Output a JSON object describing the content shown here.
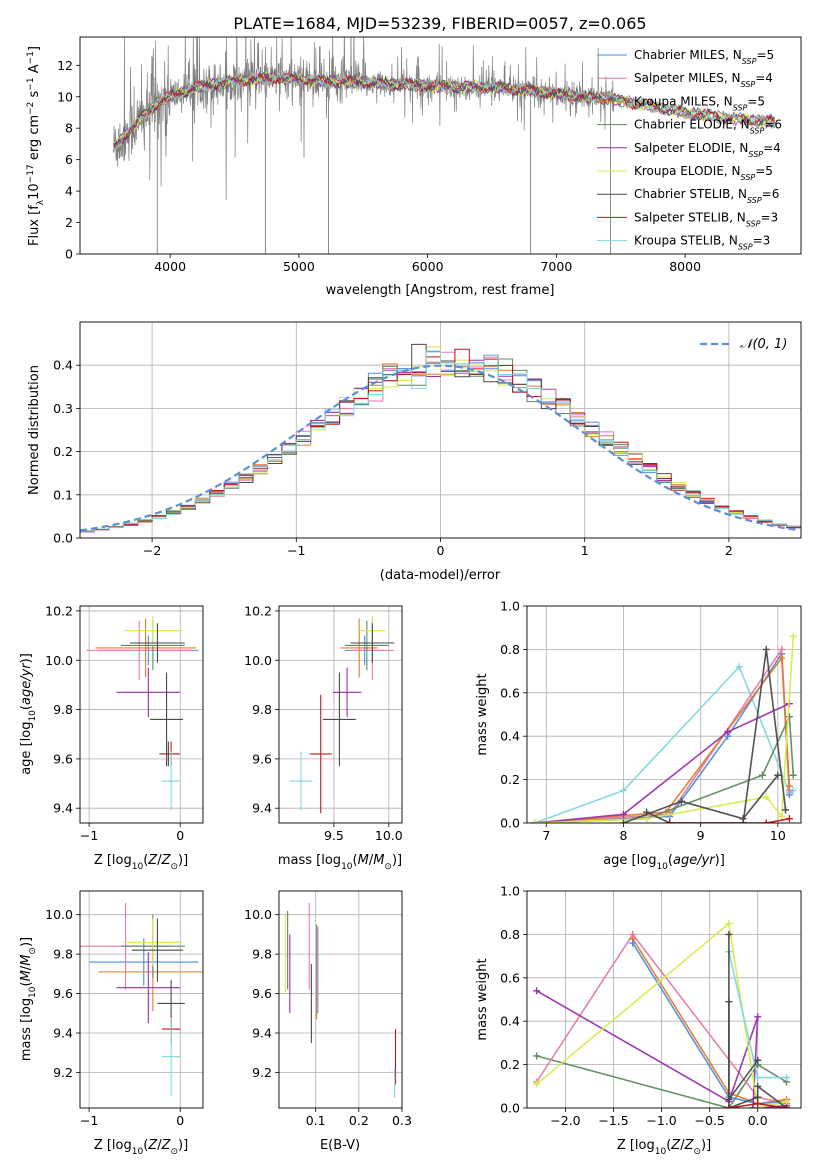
{
  "title": "PLATE=1684, MJD=53239, FIBERID=0057, z=0.065",
  "colors": {
    "chabrier_miles": "#4c8fd9",
    "salpeter_miles": "#e37aa8",
    "kroupa_miles": "#e07b2c",
    "chabrier_elodie": "#5e8a5e",
    "salpeter_elodie": "#9b2fae",
    "kroupa_elodie": "#d5ec4c",
    "chabrier_stelib": "#4a4a4a",
    "salpeter_stelib": "#c0161d",
    "kroupa_stelib": "#7fd7dc",
    "data": "#7f7f7f",
    "gauss": "#5b8fd6",
    "grid": "#b0b0b0"
  },
  "chart_data": [
    {
      "id": "spectrum",
      "type": "line",
      "xlabel": "wavelength [Angstrom, rest frame]",
      "ylabel": "Flux [fλ10⁻¹⁷ erg cm⁻² s⁻¹ A⁻¹]",
      "xlim": [
        3300,
        8900
      ],
      "ylim": [
        0,
        13.8
      ],
      "xticks": [
        4000,
        5000,
        6000,
        7000,
        8000
      ],
      "yticks": [
        0,
        2,
        4,
        6,
        8,
        10,
        12
      ],
      "grid": false,
      "legend_position": "top-right",
      "legend": [
        {
          "label": "Chabrier MILES, N",
          "sub": "SSP",
          "suffix": "=5",
          "color_key": "chabrier_miles"
        },
        {
          "label": "Salpeter MILES, N",
          "sub": "SSP",
          "suffix": "=4",
          "color_key": "salpeter_miles"
        },
        {
          "label": "Kroupa MILES, N",
          "sub": "SSP",
          "suffix": "=5",
          "color_key": "kroupa_miles"
        },
        {
          "label": "Chabrier ELODIE, N",
          "sub": "SSP",
          "suffix": "=6",
          "color_key": "chabrier_elodie"
        },
        {
          "label": "Salpeter ELODIE, N",
          "sub": "SSP",
          "suffix": "=4",
          "color_key": "salpeter_elodie"
        },
        {
          "label": "Kroupa ELODIE, N",
          "sub": "SSP",
          "suffix": "=5",
          "color_key": "kroupa_elodie"
        },
        {
          "label": "Chabrier STELIB, N",
          "sub": "SSP",
          "suffix": "=6",
          "color_key": "chabrier_stelib"
        },
        {
          "label": "Salpeter STELIB, N",
          "sub": "SSP",
          "suffix": "=3",
          "color_key": "salpeter_stelib"
        },
        {
          "label": "Kroupa STELIB, N",
          "sub": "SSP",
          "suffix": "=3",
          "color_key": "kroupa_stelib"
        }
      ],
      "continuum": {
        "x": [
          3560,
          3700,
          3900,
          4000,
          4200,
          4500,
          4800,
          5000,
          5200,
          5500,
          5800,
          6000,
          6300,
          6500,
          6800,
          7000,
          7200,
          7400,
          7600,
          7800,
          8000,
          8200,
          8400,
          8700
        ],
        "y": [
          6.8,
          8.0,
          9.6,
          10.0,
          10.6,
          11.0,
          11.2,
          11.1,
          11.0,
          10.9,
          10.8,
          10.7,
          10.6,
          10.6,
          10.4,
          10.2,
          10.0,
          9.9,
          9.6,
          9.3,
          9.0,
          8.8,
          8.6,
          8.4
        ]
      },
      "data_range": [
        3560,
        7450
      ],
      "model_range": [
        3560,
        8700
      ]
    },
    {
      "id": "residuals",
      "type": "step",
      "xlabel": "(data-model)/error",
      "ylabel": "Normed distribution",
      "xlim": [
        -2.5,
        2.5
      ],
      "ylim": [
        0,
        0.5
      ],
      "xticks": [
        -2,
        -1,
        0,
        1,
        2
      ],
      "yticks": [
        0.0,
        0.1,
        0.2,
        0.3,
        0.4
      ],
      "grid": true,
      "legend_position": "top-right",
      "legend_label": "𝒩(0, 1)",
      "bin_width": 0.1,
      "gaussian": {
        "mean": 0,
        "sigma": 1
      }
    },
    {
      "id": "age_vs_Z",
      "type": "errorbar",
      "xlabel": "Z [log10(Z/Z⊙)]",
      "ylabel": "age [log10(age/yr)]",
      "xlim": [
        -1.1,
        0.25
      ],
      "ylim": [
        9.34,
        10.22
      ],
      "xticks": [
        -1,
        0
      ],
      "yticks": [
        9.4,
        9.6,
        9.8,
        10.0,
        10.2
      ],
      "grid": true,
      "points": [
        {
          "s": "chabrier_miles",
          "x": -0.35,
          "xe": 0.55,
          "y": 10.04,
          "ye": 0.06
        },
        {
          "s": "salpeter_miles",
          "x": -0.45,
          "xe": 0.58,
          "y": 10.04,
          "ye": 0.12
        },
        {
          "s": "kroupa_miles",
          "x": -0.38,
          "xe": 0.55,
          "y": 10.05,
          "ye": 0.12
        },
        {
          "s": "chabrier_elodie",
          "x": -0.3,
          "xe": 0.35,
          "y": 10.06,
          "ye": 0.1
        },
        {
          "s": "salpeter_elodie",
          "x": -0.35,
          "xe": 0.35,
          "y": 9.87,
          "ye": 0.1
        },
        {
          "s": "kroupa_elodie",
          "x": -0.3,
          "xe": 0.32,
          "y": 10.12,
          "ye": 0.06
        },
        {
          "s": "chabrier_stelib",
          "x": -0.25,
          "xe": 0.3,
          "y": 10.07,
          "ye": 0.08
        },
        {
          "s": "chabrier_stelib",
          "x": -0.15,
          "xe": 0.18,
          "y": 9.76,
          "ye": 0.19
        },
        {
          "s": "chabrier_stelib",
          "x": -0.13,
          "xe": 0.1,
          "y": 9.62,
          "ye": 0.05
        },
        {
          "s": "salpeter_stelib",
          "x": -0.1,
          "xe": 0.1,
          "y": 9.62,
          "ye": 0.05
        },
        {
          "s": "kroupa_stelib",
          "x": -0.1,
          "xe": 0.1,
          "y": 9.51,
          "ye": 0.12
        }
      ]
    },
    {
      "id": "age_vs_mass",
      "type": "errorbar",
      "xlabel": "mass [log10(M/M⊙)]",
      "ylabel": "",
      "xlim": [
        9.0,
        10.12
      ],
      "ylim": [
        9.34,
        10.22
      ],
      "xticks": [
        9.5,
        10.0
      ],
      "yticks": [
        9.4,
        9.6,
        9.8,
        10.0,
        10.2
      ],
      "grid": true,
      "points": [
        {
          "s": "chabrier_miles",
          "x": 9.78,
          "xe": 0.18,
          "y": 10.04,
          "ye": 0.06
        },
        {
          "s": "salpeter_miles",
          "x": 9.85,
          "xe": 0.2,
          "y": 10.04,
          "ye": 0.12
        },
        {
          "s": "kroupa_miles",
          "x": 9.73,
          "xe": 0.17,
          "y": 10.05,
          "ye": 0.12
        },
        {
          "s": "chabrier_elodie",
          "x": 9.8,
          "xe": 0.2,
          "y": 10.06,
          "ye": 0.1
        },
        {
          "s": "salpeter_elodie",
          "x": 9.62,
          "xe": 0.13,
          "y": 9.87,
          "ye": 0.1
        },
        {
          "s": "kroupa_elodie",
          "x": 9.85,
          "xe": 0.12,
          "y": 10.12,
          "ye": 0.06
        },
        {
          "s": "chabrier_stelib",
          "x": 9.85,
          "xe": 0.2,
          "y": 10.07,
          "ye": 0.08
        },
        {
          "s": "chabrier_stelib",
          "x": 9.55,
          "xe": 0.15,
          "y": 9.76,
          "ye": 0.19
        },
        {
          "s": "salpeter_stelib",
          "x": 9.38,
          "xe": 0.1,
          "y": 9.62,
          "ye": 0.24
        },
        {
          "s": "kroupa_stelib",
          "x": 9.2,
          "xe": 0.1,
          "y": 9.51,
          "ye": 0.12
        }
      ]
    },
    {
      "id": "mw_vs_age",
      "type": "line",
      "xlabel": "age [log10(age/yr)]",
      "ylabel": "mass weight",
      "xlim": [
        6.75,
        10.3
      ],
      "ylim": [
        0,
        1
      ],
      "xticks": [
        7,
        8,
        9,
        10
      ],
      "yticks": [
        0.0,
        0.2,
        0.4,
        0.6,
        0.8,
        1.0
      ],
      "grid": true,
      "series": [
        {
          "s": "kroupa_stelib",
          "x": [
            6.85,
            8.0,
            9.5,
            10.15,
            10.2
          ],
          "y": [
            0.0,
            0.15,
            0.72,
            0.14,
            0.15
          ]
        },
        {
          "s": "chabrier_miles",
          "x": [
            6.85,
            8.6,
            9.35,
            10.05,
            10.15
          ],
          "y": [
            0.0,
            0.03,
            0.4,
            0.78,
            0.13
          ]
        },
        {
          "s": "salpeter_miles",
          "x": [
            6.85,
            8.6,
            10.05,
            10.15
          ],
          "y": [
            0.0,
            0.04,
            0.8,
            0.15
          ]
        },
        {
          "s": "kroupa_miles",
          "x": [
            6.85,
            8.55,
            10.05,
            10.15
          ],
          "y": [
            0.0,
            0.05,
            0.76,
            0.17
          ]
        },
        {
          "s": "salpeter_elodie",
          "x": [
            6.85,
            8.0,
            9.35,
            10.15
          ],
          "y": [
            0.0,
            0.04,
            0.42,
            0.55
          ]
        },
        {
          "s": "chabrier_elodie",
          "x": [
            6.85,
            8.3,
            9.8,
            10.15,
            10.2
          ],
          "y": [
            0.0,
            0.02,
            0.22,
            0.49,
            0.22
          ]
        },
        {
          "s": "kroupa_elodie",
          "x": [
            6.85,
            8.3,
            9.85,
            10.05,
            10.2
          ],
          "y": [
            0.0,
            0.02,
            0.12,
            0.03,
            0.86
          ]
        },
        {
          "s": "chabrier_stelib",
          "x": [
            8.3,
            8.6,
            9.55,
            9.85,
            10.1
          ],
          "y": [
            0.05,
            0.0,
            0.0,
            0.8,
            0.06
          ]
        },
        {
          "s": "chabrier_stelib",
          "x": [
            8.0,
            8.75,
            9.55,
            10.0
          ],
          "y": [
            0.0,
            0.1,
            0.02,
            0.22
          ]
        },
        {
          "s": "salpeter_stelib",
          "x": [
            8.6,
            9.85,
            10.15
          ],
          "y": [
            0.0,
            0.0,
            0.02
          ]
        }
      ]
    },
    {
      "id": "mass_vs_Z",
      "type": "errorbar",
      "xlabel": "Z [log10(Z/Z⊙)]",
      "ylabel": "mass [log10(M/M⊙)]",
      "xlim": [
        -1.1,
        0.25
      ],
      "ylim": [
        9.02,
        10.12
      ],
      "xticks": [
        -1,
        0
      ],
      "yticks": [
        9.2,
        9.4,
        9.6,
        9.8,
        10.0
      ],
      "grid": true,
      "points": [
        {
          "s": "chabrier_miles",
          "x": -0.4,
          "xe": 0.6,
          "y": 9.76,
          "ye": 0.12
        },
        {
          "s": "salpeter_miles",
          "x": -0.6,
          "xe": 0.5,
          "y": 9.84,
          "ye": 0.22
        },
        {
          "s": "kroupa_miles",
          "x": -0.3,
          "xe": 0.6,
          "y": 9.71,
          "ye": 0.2
        },
        {
          "s": "chabrier_elodie",
          "x": -0.3,
          "xe": 0.35,
          "y": 9.84,
          "ye": 0.16
        },
        {
          "s": "salpeter_elodie",
          "x": -0.35,
          "xe": 0.35,
          "y": 9.63,
          "ye": 0.18
        },
        {
          "s": "kroupa_elodie",
          "x": -0.3,
          "xe": 0.32,
          "y": 9.86,
          "ye": 0.12
        },
        {
          "s": "chabrier_stelib",
          "x": -0.25,
          "xe": 0.28,
          "y": 9.82,
          "ye": 0.16
        },
        {
          "s": "chabrier_stelib",
          "x": -0.1,
          "xe": 0.15,
          "y": 9.55,
          "ye": 0.12
        },
        {
          "s": "salpeter_stelib",
          "x": -0.1,
          "xe": 0.1,
          "y": 9.42,
          "ye": 0.07
        },
        {
          "s": "kroupa_stelib",
          "x": -0.1,
          "xe": 0.1,
          "y": 9.28,
          "ye": 0.2
        }
      ]
    },
    {
      "id": "mass_vs_ebv",
      "type": "errorbar",
      "xlabel": "E(B-V)",
      "ylabel": "",
      "xlim": [
        0.015,
        0.3
      ],
      "ylim": [
        9.02,
        10.12
      ],
      "xticks": [
        0.1,
        0.2,
        0.3
      ],
      "yticks": [
        9.2,
        9.4,
        9.6,
        9.8,
        10.0
      ],
      "grid": true,
      "points": [
        {
          "s": "chabrier_miles",
          "x": 0.105,
          "xe": 0.0,
          "y": 9.72,
          "ye": 0.22
        },
        {
          "s": "salpeter_miles",
          "x": 0.085,
          "xe": 0.0,
          "y": 9.84,
          "ye": 0.22
        },
        {
          "s": "kroupa_miles",
          "x": 0.102,
          "xe": 0.0,
          "y": 9.71,
          "ye": 0.24
        },
        {
          "s": "chabrier_elodie",
          "x": 0.035,
          "xe": 0.0,
          "y": 9.82,
          "ye": 0.2
        },
        {
          "s": "salpeter_elodie",
          "x": 0.04,
          "xe": 0.0,
          "y": 9.7,
          "ye": 0.2
        },
        {
          "s": "kroupa_elodie",
          "x": 0.03,
          "xe": 0.0,
          "y": 9.8,
          "ye": 0.2
        },
        {
          "s": "chabrier_stelib",
          "x": 0.09,
          "xe": 0.0,
          "y": 9.55,
          "ye": 0.2
        },
        {
          "s": "salpeter_stelib",
          "x": 0.285,
          "xe": 0.0,
          "y": 9.28,
          "ye": 0.14
        },
        {
          "s": "kroupa_stelib",
          "x": 0.283,
          "xe": 0.0,
          "y": 9.15,
          "ye": 0.08
        }
      ]
    },
    {
      "id": "mw_vs_Z",
      "type": "line",
      "xlabel": "Z [log10(Z/Z⊙)]",
      "ylabel": "mass weight",
      "xlim": [
        -2.4,
        0.45
      ],
      "ylim": [
        0,
        1
      ],
      "xticks": [
        -2.0,
        -1.5,
        -1.0,
        -0.5,
        0.0
      ],
      "yticks": [
        0.0,
        0.2,
        0.4,
        0.6,
        0.8,
        1.0
      ],
      "grid": true,
      "series": [
        {
          "s": "chabrier_elodie",
          "x": [
            -2.3,
            -0.3,
            0.0,
            0.3
          ],
          "y": [
            0.24,
            0.0,
            0.2,
            0.12
          ]
        },
        {
          "s": "salpeter_miles",
          "x": [
            -2.3,
            -1.3,
            0.0,
            0.3
          ],
          "y": [
            0.12,
            0.8,
            0.05,
            0.02
          ]
        },
        {
          "s": "kroupa_miles",
          "x": [
            -1.3,
            -0.3,
            0.0,
            0.3
          ],
          "y": [
            0.78,
            0.07,
            0.02,
            0.04
          ]
        },
        {
          "s": "chabrier_miles",
          "x": [
            -1.3,
            -0.3,
            0.0,
            0.3
          ],
          "y": [
            0.76,
            0.05,
            0.02,
            0.03
          ]
        },
        {
          "s": "salpeter_elodie",
          "x": [
            -2.3,
            -0.3,
            0.0,
            -0.05,
            0.3
          ],
          "y": [
            0.54,
            0.03,
            0.42,
            0.0,
            0.01
          ]
        },
        {
          "s": "kroupa_elodie",
          "x": [
            -2.3,
            -0.3,
            0.0,
            0.3
          ],
          "y": [
            0.11,
            0.85,
            0.0,
            0.03
          ]
        },
        {
          "s": "kroupa_stelib",
          "x": [
            -0.3,
            0.0,
            0.3
          ],
          "y": [
            0.72,
            0.14,
            0.14
          ]
        },
        {
          "s": "chabrier_stelib",
          "x": [
            -0.3,
            -0.3,
            0.0,
            0.0,
            0.3
          ],
          "y": [
            0.8,
            0.0,
            0.05,
            0.1,
            0.0
          ]
        },
        {
          "s": "chabrier_stelib",
          "x": [
            -0.3,
            -0.3,
            0.0
          ],
          "y": [
            0.49,
            0.04,
            0.22
          ]
        },
        {
          "s": "salpeter_stelib",
          "x": [
            -0.3,
            0.0,
            0.3
          ],
          "y": [
            0.0,
            0.02,
            0.0
          ]
        }
      ]
    }
  ]
}
